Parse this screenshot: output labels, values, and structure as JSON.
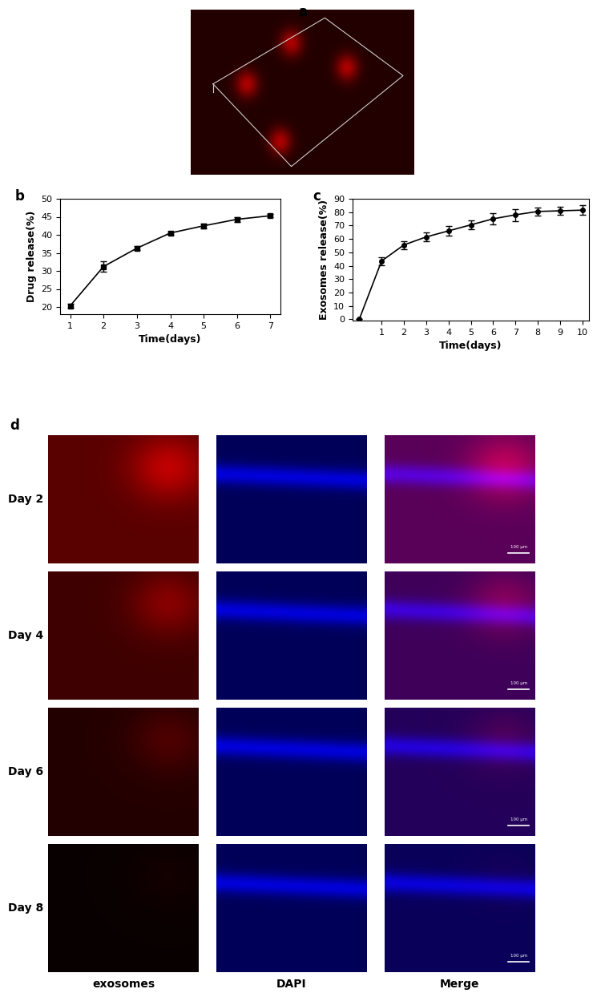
{
  "chart_data": [
    {
      "type": "line",
      "panel": "b",
      "x": [
        1,
        2,
        3,
        4,
        5,
        6,
        7
      ],
      "values": [
        20.3,
        31.2,
        36.3,
        40.5,
        42.5,
        44.3,
        45.3
      ],
      "errors": [
        0.6,
        1.5,
        0.6,
        0.5,
        0.7,
        0.7,
        0.4
      ],
      "x_label": "Time(days)",
      "y_label": "Drug release(%)",
      "xlim": [
        0.7,
        7.3
      ],
      "xticks": [
        1,
        2,
        3,
        4,
        5,
        6,
        7
      ],
      "ylim": [
        18,
        50
      ],
      "yticks": [
        20,
        25,
        30,
        35,
        40,
        45,
        50
      ],
      "color": "#000000",
      "marker": "square",
      "grid": false
    },
    {
      "type": "line",
      "panel": "c",
      "x": [
        0,
        1,
        2,
        3,
        4,
        5,
        6,
        7,
        8,
        9,
        10
      ],
      "values": [
        0,
        43.5,
        55.5,
        61.5,
        66,
        70.5,
        75,
        78,
        80.5,
        81,
        81.5
      ],
      "errors": [
        0,
        3,
        3,
        3.5,
        3.5,
        3.5,
        4,
        4.5,
        3,
        3,
        3.5
      ],
      "x_label": "Time(days)",
      "y_label": "Exosomes release(%)",
      "xlim": [
        -0.3,
        10.3
      ],
      "xticks": [
        1,
        2,
        3,
        4,
        5,
        6,
        7,
        8,
        9,
        10
      ],
      "ylim": [
        -1,
        90
      ],
      "yticks": [
        0,
        10,
        20,
        30,
        40,
        50,
        60,
        70,
        80,
        90
      ],
      "color": "#000000",
      "marker": "circle",
      "grid": false
    }
  ],
  "panel_labels": [
    "a",
    "b",
    "c",
    "d"
  ],
  "image_grid": {
    "rows": [
      "Day 2",
      "Day 4",
      "Day 6",
      "Day 8"
    ],
    "columns": [
      "exosomes",
      "DAPI",
      "Merge"
    ],
    "scale_bar": "100 μm"
  }
}
